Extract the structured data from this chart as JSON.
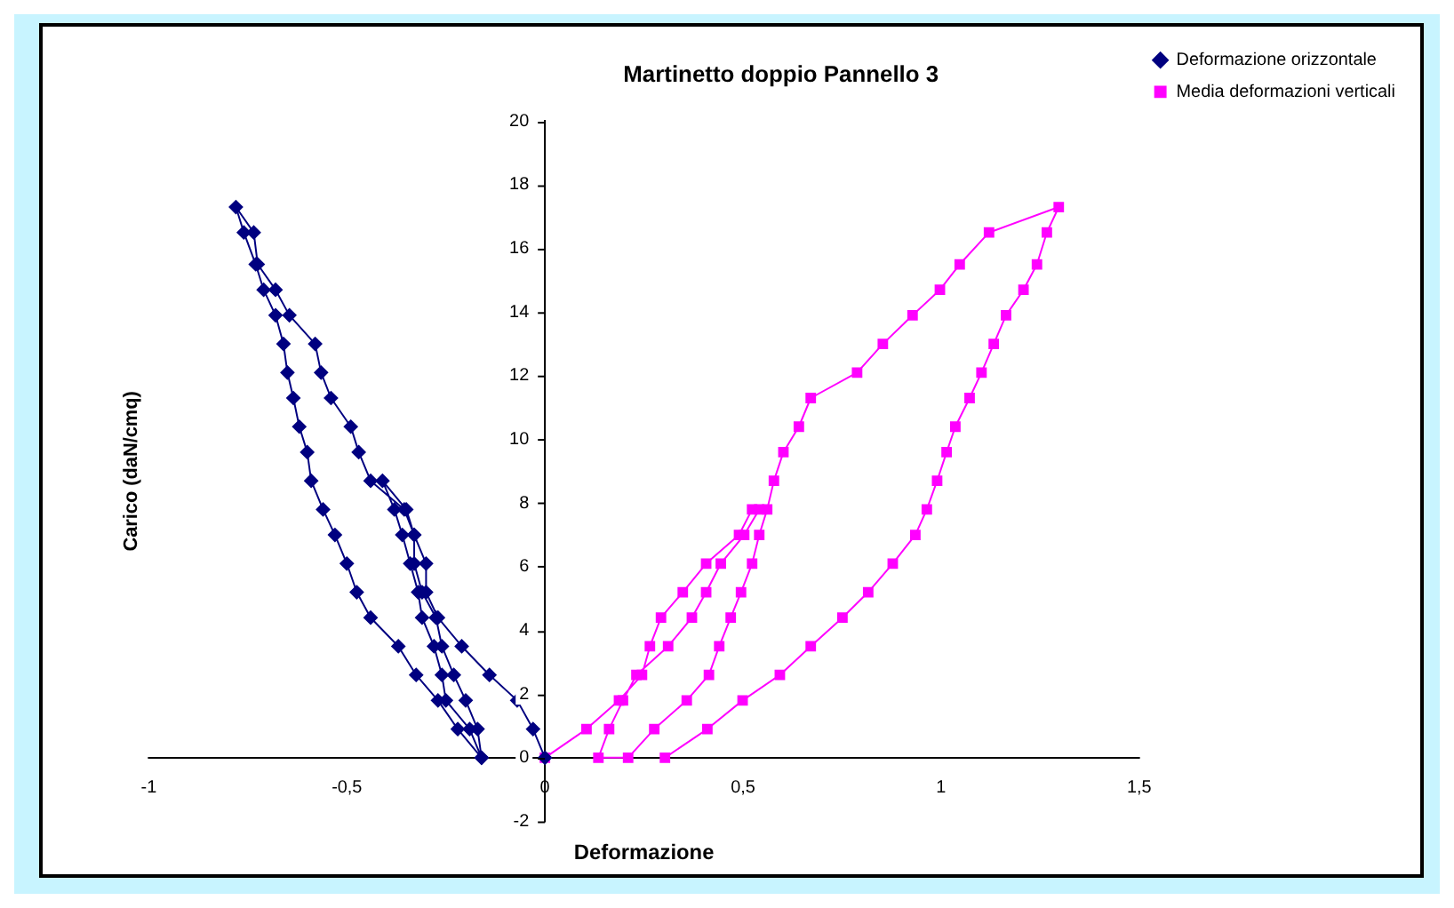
{
  "chart_data": {
    "type": "line",
    "title": "Martinetto doppio Pannello 3",
    "xlabel": "Deformazione",
    "ylabel": "Carico (daN/cmq)",
    "xlim": [
      -1,
      1.5
    ],
    "xticks": [
      -1,
      {
        "value": -0.5,
        "label": "-0,5"
      },
      0,
      {
        "value": 0.5,
        "label": "0,5"
      },
      1,
      {
        "value": 1.5,
        "label": "1,5"
      }
    ],
    "ylim": [
      -2,
      20
    ],
    "yticks": [
      -2,
      0,
      2,
      4,
      6,
      8,
      10,
      12,
      14,
      16,
      18,
      20
    ],
    "legend": "top right",
    "series": [
      {
        "name": "Deformazione orizzontale",
        "color": "#000080",
        "marker": "diamond",
        "x": [
          0,
          -0.03,
          -0.07,
          -0.14,
          -0.21,
          -0.27,
          -0.3,
          -0.3,
          -0.33,
          -0.35,
          -0.41,
          -0.38,
          -0.36,
          -0.34,
          -0.32,
          -0.31,
          -0.28,
          -0.26,
          -0.25,
          -0.19,
          -0.16,
          -0.17,
          -0.2,
          -0.23,
          -0.26,
          -0.275,
          -0.31,
          -0.33,
          -0.33,
          -0.355,
          -0.44,
          -0.47,
          -0.49,
          -0.54,
          -0.565,
          -0.58,
          -0.645,
          -0.68,
          -0.725,
          -0.735,
          -0.78,
          -0.76,
          -0.73,
          -0.71,
          -0.68,
          -0.66,
          -0.65,
          -0.635,
          -0.62,
          -0.6,
          -0.59,
          -0.56,
          -0.53,
          -0.5,
          -0.475,
          -0.44,
          -0.37,
          -0.325,
          -0.27,
          -0.22,
          -0.16
        ],
        "values": [
          0,
          0.9,
          1.8,
          2.6,
          3.5,
          4.4,
          5.2,
          6.1,
          7.0,
          7.8,
          8.7,
          7.8,
          7.0,
          6.1,
          5.2,
          4.4,
          3.5,
          2.6,
          1.8,
          0.9,
          0,
          0.9,
          1.8,
          2.6,
          3.5,
          4.4,
          5.2,
          6.1,
          7.0,
          7.8,
          8.7,
          9.6,
          10.4,
          11.3,
          12.1,
          13.0,
          13.9,
          14.7,
          15.5,
          16.5,
          17.3,
          16.5,
          15.5,
          14.7,
          13.9,
          13.0,
          12.1,
          11.3,
          10.4,
          9.6,
          8.7,
          7.8,
          7.0,
          6.1,
          5.2,
          4.4,
          3.5,
          2.6,
          1.8,
          0.9,
          0
        ]
      },
      {
        "name": "Media deformazioni verticali",
        "color": "#ff00ff",
        "marker": "square",
        "x": [
          0,
          0.105,
          0.187,
          0.245,
          0.265,
          0.293,
          0.348,
          0.407,
          0.49,
          0.523,
          0.541,
          0.503,
          0.444,
          0.407,
          0.371,
          0.311,
          0.231,
          0.197,
          0.162,
          0.135,
          0.21,
          0.276,
          0.358,
          0.414,
          0.44,
          0.469,
          0.495,
          0.523,
          0.541,
          0.561,
          0.578,
          0.602,
          0.641,
          0.671,
          0.788,
          0.853,
          0.928,
          0.997,
          1.047,
          1.121,
          1.297,
          1.267,
          1.242,
          1.208,
          1.164,
          1.133,
          1.102,
          1.072,
          1.036,
          1.014,
          0.99,
          0.964,
          0.935,
          0.878,
          0.816,
          0.751,
          0.671,
          0.593,
          0.499,
          0.41,
          0.303
        ],
        "values": [
          0,
          0.9,
          1.8,
          2.6,
          3.5,
          4.4,
          5.2,
          6.1,
          7.0,
          7.8,
          7.8,
          7.0,
          6.1,
          5.2,
          4.4,
          3.5,
          2.6,
          1.8,
          0.9,
          0,
          0,
          0.9,
          1.8,
          2.6,
          3.5,
          4.4,
          5.2,
          6.1,
          7.0,
          7.8,
          8.7,
          9.6,
          10.4,
          11.3,
          12.1,
          13.0,
          13.9,
          14.7,
          15.5,
          16.5,
          17.3,
          16.5,
          15.5,
          14.7,
          13.9,
          13.0,
          12.1,
          11.3,
          10.4,
          9.6,
          8.7,
          7.8,
          7.0,
          6.1,
          5.2,
          4.4,
          3.5,
          2.6,
          1.8,
          0.9,
          0
        ]
      }
    ]
  }
}
